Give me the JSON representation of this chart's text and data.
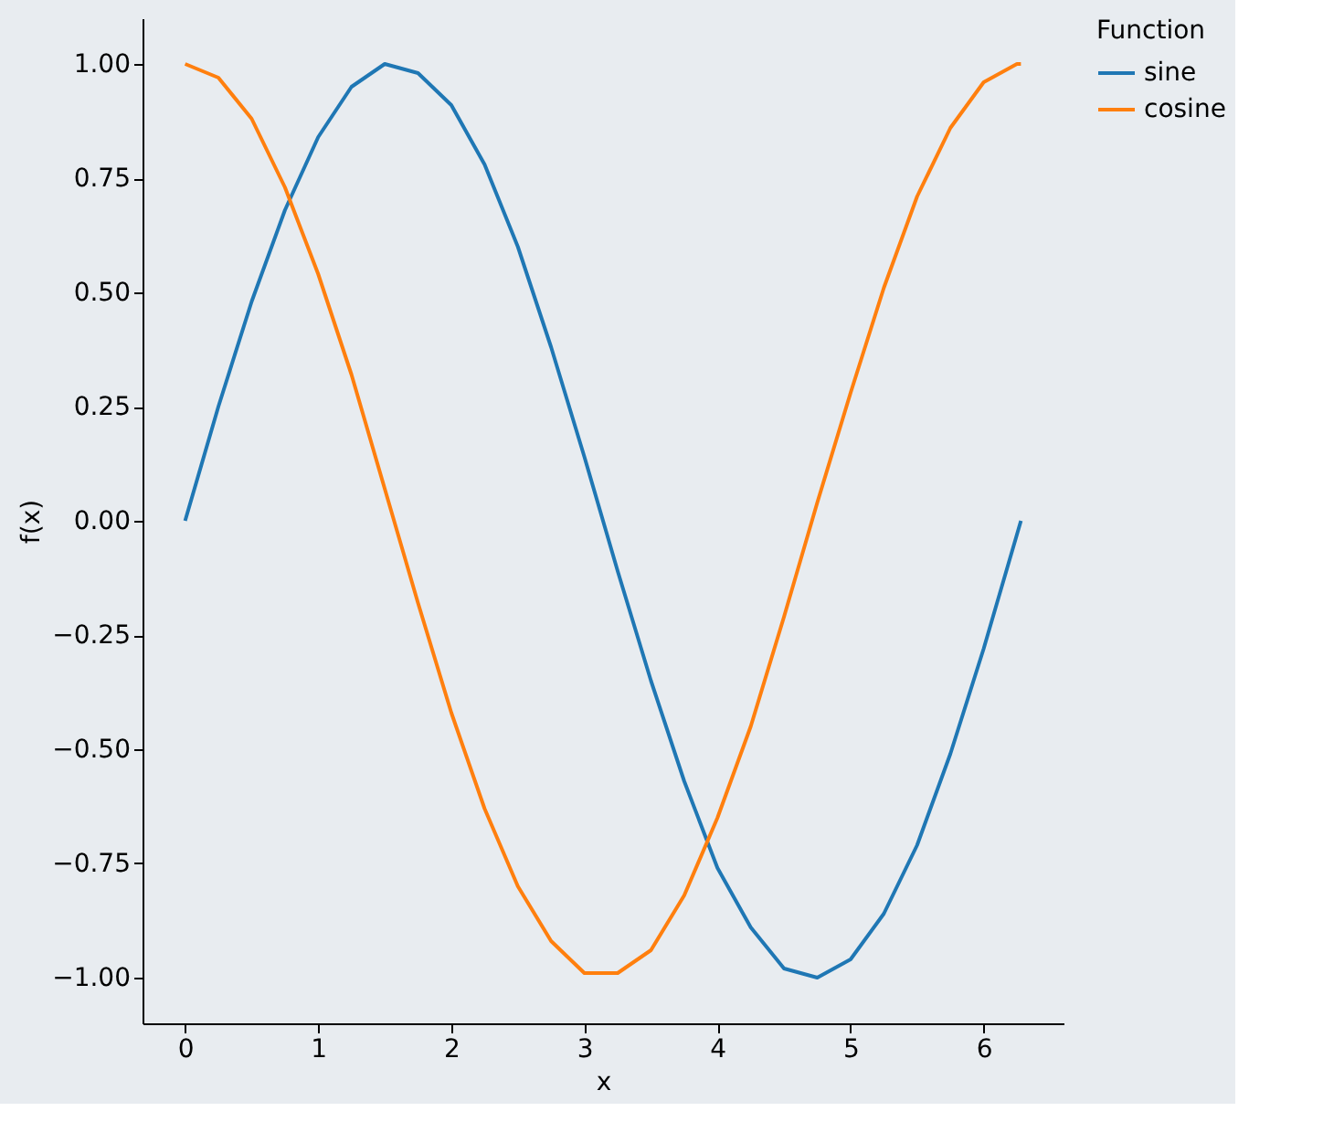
{
  "chart_data": {
    "type": "line",
    "xlabel": "x",
    "ylabel": "f(x)",
    "legend_title": "Function",
    "legend": "right",
    "grid": false,
    "marker": "none",
    "line_style": "solid",
    "x": [
      0,
      0.25,
      0.5,
      0.75,
      1,
      1.25,
      1.5,
      1.75,
      2,
      2.25,
      2.5,
      2.75,
      3,
      3.25,
      3.5,
      3.75,
      4,
      4.25,
      4.5,
      4.75,
      5,
      5.25,
      5.5,
      5.75,
      6,
      6.25,
      6.28
    ],
    "series": [
      {
        "name": "sine",
        "color": "#1f77b4",
        "values": [
          0,
          0.25,
          0.48,
          0.68,
          0.84,
          0.95,
          1.0,
          0.98,
          0.91,
          0.78,
          0.6,
          0.38,
          0.14,
          -0.11,
          -0.35,
          -0.57,
          -0.76,
          -0.89,
          -0.98,
          -1.0,
          -0.96,
          -0.86,
          -0.71,
          -0.51,
          -0.28,
          -0.03,
          0
        ]
      },
      {
        "name": "cosine",
        "color": "#ff7f0e",
        "values": [
          1,
          0.97,
          0.88,
          0.73,
          0.54,
          0.32,
          0.07,
          -0.18,
          -0.42,
          -0.63,
          -0.8,
          -0.92,
          -0.99,
          -0.99,
          -0.94,
          -0.82,
          -0.65,
          -0.45,
          -0.21,
          0.04,
          0.28,
          0.51,
          0.71,
          0.86,
          0.96,
          1.0,
          1
        ]
      }
    ],
    "xlim": [
      -0.32,
      6.6
    ],
    "xticks": [
      0,
      1,
      2,
      3,
      4,
      5,
      6
    ],
    "ylim": [
      -1.1,
      1.1
    ],
    "yticks": [
      {
        "value": -1,
        "label": "−1.00"
      },
      {
        "value": -0.75,
        "label": "−0.75"
      },
      {
        "value": -0.5,
        "label": "−0.50"
      },
      {
        "value": -0.25,
        "label": "−0.25"
      },
      {
        "value": 0,
        "label": "0.00"
      },
      {
        "value": 0.25,
        "label": "0.25"
      },
      {
        "value": 0.5,
        "label": "0.50"
      },
      {
        "value": 0.75,
        "label": "0.75"
      },
      {
        "value": 1,
        "label": "1.00"
      }
    ]
  }
}
